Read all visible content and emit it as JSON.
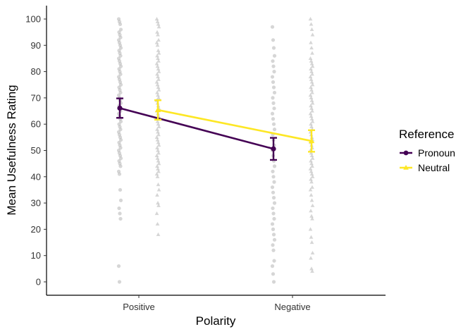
{
  "chart_data": {
    "type": "scatter",
    "title": "",
    "xlabel": "Polarity",
    "ylabel": "Mean Usefulness Rating",
    "categories": [
      "Positive",
      "Negative"
    ],
    "ylim": [
      0,
      100
    ],
    "yticks": [
      0,
      10,
      20,
      30,
      40,
      50,
      60,
      70,
      80,
      90,
      100
    ],
    "grid": false,
    "legend": {
      "title": "Reference",
      "position": "right"
    },
    "series": [
      {
        "name": "Pronoun",
        "color": "#440154",
        "marker": "circle",
        "means": [
          66.1,
          50.6
        ],
        "ci_low": [
          62.4,
          46.4
        ],
        "ci_high": [
          69.8,
          54.8
        ],
        "points": [
          [
            100,
            99,
            98,
            96,
            95,
            94,
            93,
            92,
            91,
            90,
            89,
            88,
            87,
            86,
            85,
            84,
            83,
            82,
            81,
            80,
            79,
            78,
            77,
            76,
            75,
            74,
            73,
            72,
            71,
            70,
            69,
            68,
            67,
            66,
            65,
            64,
            63,
            62,
            61,
            60,
            59,
            58,
            57,
            56,
            55,
            54,
            53,
            52,
            51,
            50,
            49,
            48,
            47,
            46,
            45,
            44,
            42,
            41,
            35,
            31,
            28,
            26,
            24,
            6,
            0
          ],
          [
            97,
            92,
            89,
            86,
            84,
            82,
            80,
            78,
            76,
            74,
            72,
            70,
            68,
            66,
            64,
            62,
            60,
            58,
            56,
            54,
            52,
            50,
            48,
            46,
            44,
            42,
            40,
            38,
            36,
            34,
            32,
            30,
            28,
            26,
            24,
            22,
            20,
            18,
            16,
            14,
            12,
            8,
            6,
            3,
            0
          ]
        ]
      },
      {
        "name": "Neutral",
        "color": "#fde725",
        "marker": "triangle",
        "means": [
          65.4,
          53.6
        ],
        "ci_low": [
          61.7,
          49.5
        ],
        "ci_high": [
          69.1,
          57.7
        ],
        "points": [
          [
            100,
            99,
            98,
            97,
            95,
            94,
            92,
            91,
            90,
            88,
            87,
            86,
            85,
            84,
            83,
            82,
            81,
            80,
            79,
            78,
            77,
            76,
            75,
            74,
            73,
            72,
            71,
            70,
            69,
            68,
            67,
            66,
            65,
            64,
            63,
            62,
            61,
            60,
            59,
            58,
            57,
            56,
            55,
            54,
            53,
            52,
            51,
            50,
            49,
            48,
            47,
            46,
            45,
            44,
            43,
            42,
            41,
            40,
            37,
            35,
            33,
            30,
            29,
            26,
            22,
            18
          ],
          [
            100,
            98,
            96,
            94,
            91,
            89,
            87,
            85,
            84,
            83,
            82,
            81,
            80,
            79,
            78,
            77,
            76,
            75,
            74,
            73,
            72,
            71,
            70,
            69,
            68,
            67,
            66,
            65,
            64,
            63,
            62,
            61,
            60,
            59,
            58,
            57,
            56,
            55,
            54,
            53,
            52,
            51,
            50,
            49,
            48,
            47,
            46,
            45,
            44,
            43,
            42,
            41,
            40,
            39,
            38,
            36,
            35,
            33,
            31,
            29,
            27,
            25,
            24,
            20,
            17,
            15,
            11,
            9,
            5,
            4
          ]
        ]
      }
    ]
  }
}
